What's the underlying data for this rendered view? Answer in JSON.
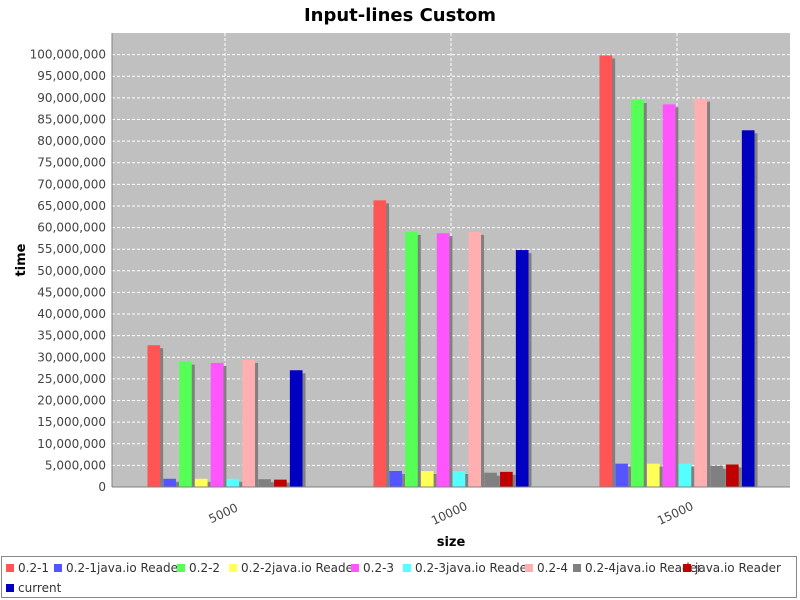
{
  "chart_data": {
    "type": "bar",
    "title": "Input-lines Custom",
    "xlabel": "size",
    "ylabel": "time",
    "categories": [
      "5000",
      "10000",
      "15000"
    ],
    "ylim": [
      0,
      105000000
    ],
    "ytick_step": 5000000,
    "grid": true,
    "legend_position": "bottom",
    "series": [
      {
        "name": "0.2-1",
        "color": "#ff5555",
        "values": [
          32800000,
          66300000,
          99800000
        ]
      },
      {
        "name": "0.2-1java.io Reader",
        "color": "#5555ff",
        "values": [
          1900000,
          3700000,
          5400000
        ]
      },
      {
        "name": "0.2-2",
        "color": "#55ff55",
        "values": [
          29000000,
          59000000,
          89500000
        ]
      },
      {
        "name": "0.2-2java.io Reader",
        "color": "#ffff55",
        "values": [
          1900000,
          3700000,
          5400000
        ]
      },
      {
        "name": "0.2-3",
        "color": "#ff55ff",
        "values": [
          28700000,
          58700000,
          88500000
        ]
      },
      {
        "name": "0.2-3java.io Reader",
        "color": "#55ffff",
        "values": [
          1900000,
          3700000,
          5400000
        ]
      },
      {
        "name": "0.2-4",
        "color": "#ffafaf",
        "values": [
          29400000,
          59000000,
          89800000
        ]
      },
      {
        "name": "0.2-4java.io Reader",
        "color": "#808080",
        "values": [
          1800000,
          3300000,
          4900000
        ]
      },
      {
        "name": "java.io Reader",
        "color": "#c00000",
        "values": [
          1700000,
          3500000,
          5200000
        ]
      },
      {
        "name": "current",
        "color": "#0000c0",
        "values": [
          27000000,
          54800000,
          82500000
        ]
      }
    ]
  }
}
